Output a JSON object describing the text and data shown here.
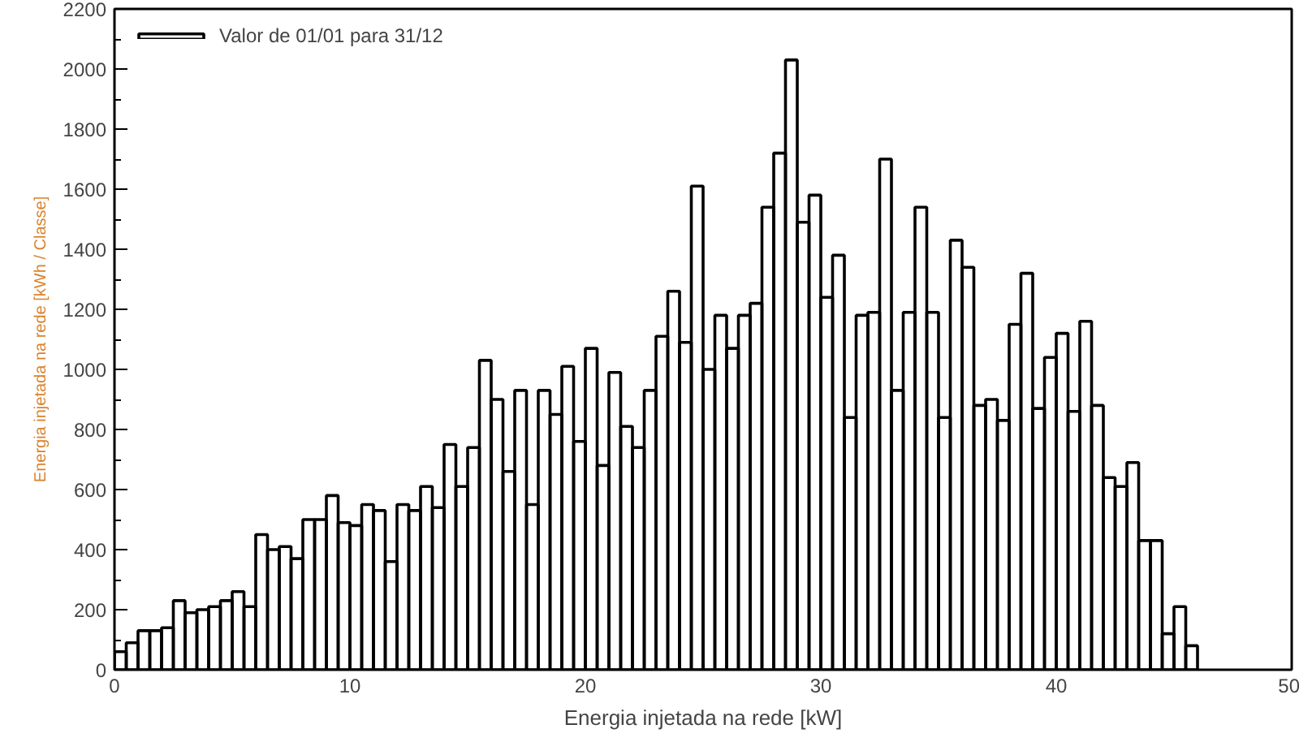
{
  "chart_data": {
    "type": "histogram",
    "xlabel": "Energia injetada na rede [kW]",
    "ylabel": "Energia injetada na rede [kWh / Classe]",
    "xlim": [
      0,
      50
    ],
    "xticks": [
      0,
      10,
      20,
      30,
      40,
      50
    ],
    "ylim": [
      0,
      2200
    ],
    "yticks": [
      0,
      200,
      400,
      600,
      800,
      1000,
      1200,
      1400,
      1600,
      1800,
      2000,
      2200
    ],
    "grid": false,
    "legend": "top left",
    "bins": [
      0,
      0.5,
      1,
      1.5,
      2,
      2.5,
      3,
      3.5,
      4,
      4.5,
      5,
      5.5,
      6,
      6.5,
      7,
      7.5,
      8,
      8.5,
      9,
      9.5,
      10,
      10.5,
      11,
      11.5,
      12,
      12.5,
      13,
      13.5,
      14,
      14.5,
      15,
      15.5,
      16,
      16.5,
      17,
      17.5,
      18,
      18.5,
      19,
      19.5,
      20,
      20.5,
      21,
      21.5,
      22,
      22.5,
      23,
      23.5,
      24,
      24.5,
      25,
      25.5,
      26,
      26.5,
      27,
      27.5,
      28,
      28.5,
      29,
      29.5,
      30,
      30.5,
      31,
      31.5,
      32,
      32.5,
      33,
      33.5,
      34,
      34.5,
      35,
      35.5,
      36,
      36.5,
      37,
      37.5,
      38,
      38.5,
      39,
      39.5,
      40,
      40.5,
      41,
      41.5,
      42,
      42.5,
      43,
      43.5,
      44,
      44.5,
      45,
      45.5,
      46
    ],
    "series": [
      {
        "name": "Valor de 01/01 para 31/12",
        "color": "#000000",
        "values": [
          60,
          90,
          130,
          130,
          140,
          230,
          190,
          200,
          210,
          230,
          260,
          210,
          450,
          400,
          410,
          370,
          500,
          500,
          580,
          490,
          480,
          550,
          530,
          360,
          550,
          530,
          610,
          540,
          750,
          610,
          740,
          1030,
          900,
          660,
          930,
          550,
          930,
          850,
          1010,
          760,
          1070,
          680,
          990,
          810,
          740,
          930,
          1110,
          1260,
          1090,
          1610,
          1000,
          1180,
          1070,
          1180,
          1220,
          1540,
          1720,
          2030,
          1490,
          1580,
          1240,
          1380,
          840,
          1180,
          1190,
          1700,
          930,
          1190,
          1540,
          1190,
          840,
          1430,
          1340,
          880,
          900,
          830,
          1150,
          1320,
          870,
          1040,
          1120,
          860,
          1160,
          880,
          640,
          610,
          690,
          430,
          430,
          120,
          210,
          80
        ]
      }
    ]
  }
}
